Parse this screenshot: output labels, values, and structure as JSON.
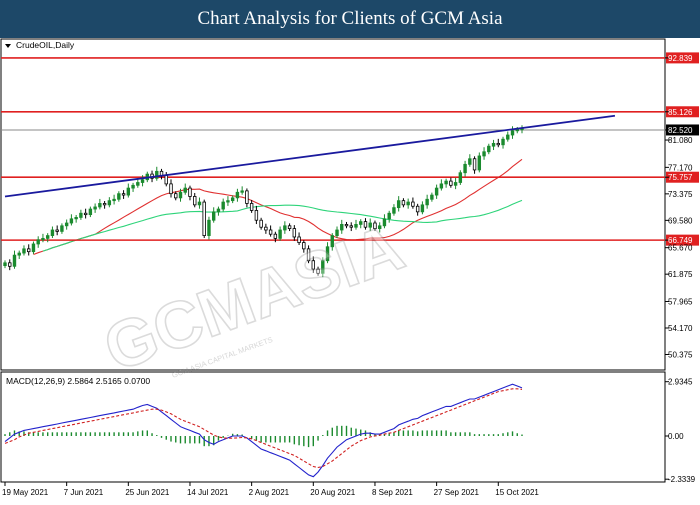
{
  "header": {
    "title": "Chart Analysis for Clients of GCM Asia"
  },
  "chart_data": [
    {
      "type": "candlestick",
      "title": "CrudeOIL,Daily",
      "yticks": [
        92.839,
        85.126,
        82.52,
        81.08,
        77.17,
        75.757,
        73.375,
        69.58,
        66.749,
        65.67,
        61.875,
        57.965,
        54.17,
        50.375
      ],
      "ylim": [
        50.375,
        94.0
      ],
      "xtick_labels": [
        "19 May 2021",
        "7 Jun 2021",
        "25 Jun 2021",
        "14 Jul 2021",
        "2 Aug 2021",
        "20 Aug 2021",
        "8 Sep 2021",
        "27 Sep 2021",
        "15 Oct 2021"
      ],
      "xtick_bar_index": [
        0,
        13,
        26,
        39,
        52,
        65,
        78,
        91,
        104
      ],
      "levels": {
        "resistance_high": 92.839,
        "resistance": 85.126,
        "current_price": 82.52,
        "support": 75.757,
        "support_low": 66.749
      },
      "level_colors": {
        "resistance_high": "#e02020",
        "resistance": "#e02020",
        "current_price": "#000000",
        "support": "#e02020",
        "support_low": "#e02020"
      },
      "trendline": {
        "from": [
          0,
          73.0
        ],
        "to": [
          117,
          84.2
        ],
        "color": "#1a1a9e"
      },
      "close": [
        63.5,
        63.0,
        64.6,
        64.9,
        65.5,
        65.1,
        66.2,
        66.8,
        67.0,
        67.4,
        68.2,
        68.0,
        68.8,
        69.2,
        69.8,
        70.0,
        70.6,
        70.4,
        71.2,
        71.5,
        72.0,
        71.8,
        72.4,
        72.6,
        73.4,
        73.2,
        74.2,
        74.6,
        75.0,
        75.4,
        76.2,
        75.6,
        76.6,
        76.0,
        74.8,
        73.4,
        72.8,
        73.6,
        74.2,
        73.0,
        71.8,
        72.2,
        67.4,
        69.6,
        70.8,
        71.2,
        72.2,
        72.4,
        72.8,
        73.6,
        73.8,
        72.0,
        71.0,
        69.6,
        68.6,
        68.2,
        67.6,
        67.0,
        68.2,
        68.8,
        68.4,
        67.2,
        66.4,
        65.5,
        63.8,
        62.6,
        62.0,
        63.8,
        65.8,
        67.4,
        68.2,
        69.0,
        68.8,
        68.6,
        69.0,
        69.4,
        68.6,
        69.2,
        68.4,
        68.8,
        69.8,
        70.6,
        71.4,
        72.4,
        71.8,
        72.2,
        71.6,
        70.8,
        71.8,
        72.6,
        73.2,
        74.2,
        74.8,
        75.2,
        74.6,
        75.0,
        76.4,
        77.6,
        78.4,
        76.8,
        78.8,
        79.4,
        80.2,
        80.6,
        80.4,
        81.2,
        81.8,
        82.4,
        82.6,
        82.7
      ],
      "ma_fast_color": "#e03030",
      "ma_slow_color": "#2ed47a",
      "bull_color": "#1b8a2e",
      "bear_color": "#000000"
    },
    {
      "type": "macd",
      "title": "MACD(12,26,9) 2.5864 2.5165 0.0700",
      "yticks": [
        2.9345,
        0.0,
        -2.3339
      ],
      "ylim": [
        -2.3339,
        2.9345
      ],
      "macd": [
        -0.3,
        -0.1,
        0.1,
        0.2,
        0.3,
        0.35,
        0.4,
        0.45,
        0.5,
        0.55,
        0.6,
        0.65,
        0.7,
        0.75,
        0.8,
        0.85,
        0.9,
        0.95,
        1.0,
        1.05,
        1.1,
        1.15,
        1.2,
        1.25,
        1.3,
        1.35,
        1.4,
        1.45,
        1.55,
        1.65,
        1.7,
        1.6,
        1.5,
        1.3,
        1.1,
        0.9,
        0.7,
        0.5,
        0.4,
        0.3,
        0.2,
        0.1,
        -0.2,
        -0.35,
        -0.45,
        -0.3,
        -0.2,
        -0.1,
        0.0,
        0.0,
        0.0,
        -0.1,
        -0.3,
        -0.5,
        -0.7,
        -0.8,
        -0.9,
        -1.0,
        -1.1,
        -1.2,
        -1.3,
        -1.5,
        -1.7,
        -1.9,
        -2.1,
        -2.2,
        -1.95,
        -1.6,
        -1.2,
        -0.9,
        -0.6,
        -0.4,
        -0.2,
        -0.1,
        0.0,
        0.1,
        0.15,
        0.15,
        0.1,
        0.1,
        0.2,
        0.3,
        0.4,
        0.6,
        0.7,
        0.8,
        0.9,
        0.95,
        1.1,
        1.2,
        1.3,
        1.4,
        1.5,
        1.6,
        1.6,
        1.7,
        1.8,
        1.9,
        2.0,
        2.0,
        2.1,
        2.2,
        2.3,
        2.4,
        2.5,
        2.6,
        2.7,
        2.8,
        2.7,
        2.6
      ],
      "signal": [
        -0.4,
        -0.3,
        -0.2,
        -0.05,
        0.05,
        0.15,
        0.2,
        0.25,
        0.3,
        0.35,
        0.4,
        0.45,
        0.5,
        0.55,
        0.6,
        0.65,
        0.7,
        0.75,
        0.8,
        0.85,
        0.9,
        0.95,
        1.0,
        1.05,
        1.1,
        1.15,
        1.2,
        1.25,
        1.3,
        1.35,
        1.4,
        1.45,
        1.45,
        1.4,
        1.3,
        1.2,
        1.05,
        0.9,
        0.8,
        0.7,
        0.6,
        0.5,
        0.35,
        0.2,
        0.05,
        -0.05,
        -0.1,
        -0.12,
        -0.12,
        -0.1,
        -0.08,
        -0.1,
        -0.15,
        -0.25,
        -0.35,
        -0.45,
        -0.55,
        -0.65,
        -0.75,
        -0.85,
        -0.95,
        -1.05,
        -1.2,
        -1.35,
        -1.5,
        -1.65,
        -1.7,
        -1.65,
        -1.5,
        -1.35,
        -1.15,
        -0.95,
        -0.75,
        -0.55,
        -0.4,
        -0.25,
        -0.15,
        -0.05,
        0.0,
        0.05,
        0.1,
        0.15,
        0.2,
        0.3,
        0.4,
        0.5,
        0.6,
        0.7,
        0.8,
        0.9,
        1.0,
        1.1,
        1.2,
        1.3,
        1.4,
        1.5,
        1.6,
        1.7,
        1.8,
        1.9,
        2.0,
        2.1,
        2.2,
        2.3,
        2.4,
        2.45,
        2.5,
        2.55,
        2.55,
        2.52
      ],
      "macd_color": "#2222cc",
      "signal_color": "#d02020",
      "hist_color": "#1b8a2e"
    }
  ],
  "watermark": {
    "main": "GCMASIA",
    "sub": "GCM ASIA CAPITAL MARKETS"
  }
}
